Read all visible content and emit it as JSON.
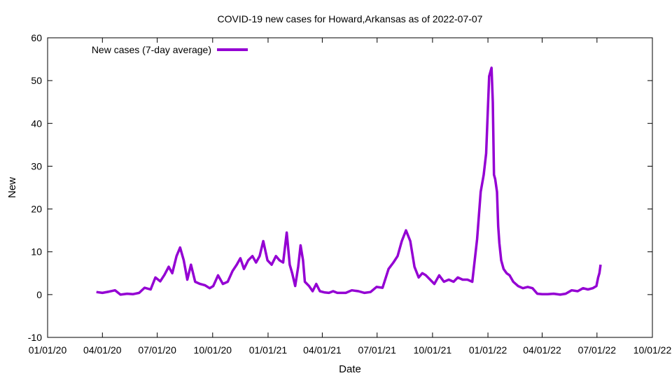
{
  "chart_data": {
    "type": "line",
    "title": "COVID-19 new cases for Howard,Arkansas as of 2022-07-07",
    "xlabel": "Date",
    "ylabel": "New",
    "ylim": [
      -10,
      60
    ],
    "xlim": [
      "2020-01-01",
      "2022-10-01"
    ],
    "y_ticks": [
      "-10",
      "0",
      "10",
      "20",
      "30",
      "40",
      "50",
      "60"
    ],
    "x_ticks": [
      "01/01/20",
      "04/01/20",
      "07/01/20",
      "10/01/20",
      "01/01/21",
      "04/01/21",
      "07/01/21",
      "10/01/21",
      "01/01/22",
      "04/01/22",
      "07/01/22",
      "10/01/22"
    ],
    "grid": false,
    "legend_position": "top-left",
    "series": [
      {
        "name": "New cases (7-day average)",
        "color": "#9400d3",
        "x": [
          "2020-03-22",
          "2020-04-01",
          "2020-04-12",
          "2020-04-22",
          "2020-05-01",
          "2020-05-12",
          "2020-05-22",
          "2020-06-01",
          "2020-06-10",
          "2020-06-20",
          "2020-06-28",
          "2020-07-06",
          "2020-07-13",
          "2020-07-20",
          "2020-07-26",
          "2020-08-02",
          "2020-08-08",
          "2020-08-14",
          "2020-08-20",
          "2020-08-26",
          "2020-09-02",
          "2020-09-10",
          "2020-09-18",
          "2020-09-26",
          "2020-10-02",
          "2020-10-10",
          "2020-10-18",
          "2020-10-26",
          "2020-11-03",
          "2020-11-10",
          "2020-11-16",
          "2020-11-22",
          "2020-11-29",
          "2020-12-06",
          "2020-12-12",
          "2020-12-18",
          "2020-12-24",
          "2020-12-31",
          "2021-01-07",
          "2021-01-14",
          "2021-01-20",
          "2021-01-26",
          "2021-02-01",
          "2021-02-06",
          "2021-02-10",
          "2021-02-15",
          "2021-02-20",
          "2021-02-24",
          "2021-02-28",
          "2021-03-03",
          "2021-03-10",
          "2021-03-16",
          "2021-03-22",
          "2021-03-28",
          "2021-04-05",
          "2021-04-12",
          "2021-04-19",
          "2021-04-26",
          "2021-05-03",
          "2021-05-10",
          "2021-05-20",
          "2021-05-31",
          "2021-06-10",
          "2021-06-20",
          "2021-06-30",
          "2021-07-10",
          "2021-07-20",
          "2021-07-28",
          "2021-08-04",
          "2021-08-11",
          "2021-08-18",
          "2021-08-25",
          "2021-09-01",
          "2021-09-08",
          "2021-09-14",
          "2021-09-20",
          "2021-09-27",
          "2021-10-04",
          "2021-10-12",
          "2021-10-20",
          "2021-10-28",
          "2021-11-05",
          "2021-11-12",
          "2021-11-20",
          "2021-11-28",
          "2021-12-06",
          "2021-12-14",
          "2021-12-20",
          "2021-12-25",
          "2021-12-29",
          "2022-01-03",
          "2022-01-07",
          "2022-01-09",
          "2022-01-11",
          "2022-01-13",
          "2022-01-16",
          "2022-01-18",
          "2022-01-20",
          "2022-01-23",
          "2022-01-27",
          "2022-02-01",
          "2022-02-06",
          "2022-02-12",
          "2022-02-20",
          "2022-02-28",
          "2022-03-08",
          "2022-03-16",
          "2022-03-24",
          "2022-04-01",
          "2022-04-10",
          "2022-04-20",
          "2022-05-01",
          "2022-05-10",
          "2022-05-20",
          "2022-05-30",
          "2022-06-08",
          "2022-06-16",
          "2022-06-24",
          "2022-06-30",
          "2022-07-03",
          "2022-07-05",
          "2022-07-07"
        ],
        "y": [
          0.6,
          0.4,
          0.7,
          1.0,
          0.0,
          0.2,
          0.1,
          0.4,
          1.6,
          1.2,
          4.0,
          3.1,
          4.6,
          6.5,
          5.0,
          9.0,
          11.0,
          8.0,
          3.5,
          7.0,
          3.0,
          2.5,
          2.2,
          1.5,
          2.0,
          4.5,
          2.5,
          3.0,
          5.5,
          7.0,
          8.5,
          6.0,
          8.0,
          9.0,
          7.5,
          9.0,
          12.5,
          8.0,
          7.0,
          9.0,
          8.0,
          7.5,
          14.5,
          7.0,
          5.0,
          2.0,
          6.5,
          11.5,
          8.0,
          3.0,
          2.0,
          0.8,
          2.5,
          0.8,
          0.5,
          0.4,
          0.8,
          0.4,
          0.4,
          0.4,
          1.0,
          0.8,
          0.4,
          0.6,
          1.8,
          1.6,
          6.0,
          7.5,
          9.0,
          12.5,
          15.0,
          12.5,
          6.5,
          4.0,
          5.0,
          4.5,
          3.5,
          2.5,
          4.5,
          3.0,
          3.5,
          3.0,
          4.0,
          3.5,
          3.5,
          3.0,
          13.0,
          24.0,
          28.0,
          33.0,
          51.0,
          53.0,
          45.0,
          28.0,
          27.0,
          24.0,
          16.0,
          12.0,
          8.0,
          6.0,
          5.0,
          4.5,
          3.0,
          2.0,
          1.5,
          1.8,
          1.5,
          0.2,
          0.1,
          0.1,
          0.2,
          0.0,
          0.2,
          1.0,
          0.8,
          1.5,
          1.2,
          1.5,
          2.0,
          4.0,
          5.0,
          7.0
        ]
      }
    ]
  }
}
